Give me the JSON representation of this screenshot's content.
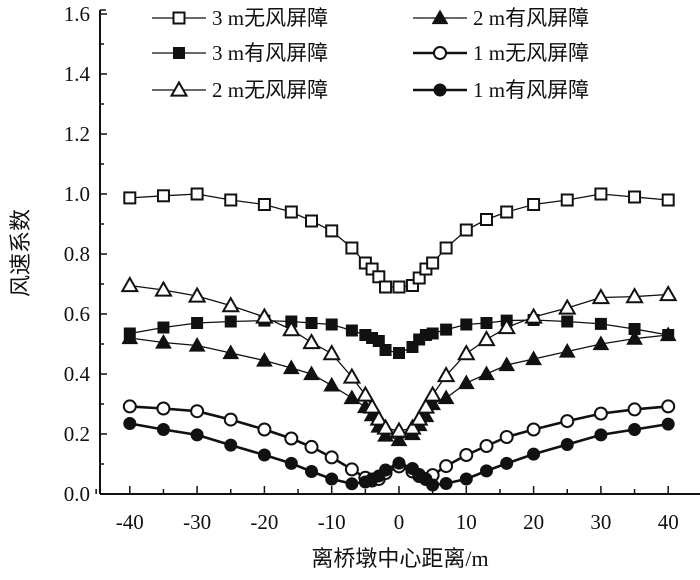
{
  "chart_data": {
    "type": "line",
    "title": "",
    "xlabel": "离桥墩中心距离/m",
    "ylabel": "风速系数",
    "xlim": [
      -46,
      46
    ],
    "ylim": [
      0,
      1.6
    ],
    "xticks": [
      -40,
      -30,
      -20,
      -10,
      0,
      10,
      20,
      30,
      40
    ],
    "xtick_labels": [
      "-40",
      "-30",
      "-20",
      "-10",
      "0",
      "10",
      "20",
      "30",
      "40"
    ],
    "yticks": [
      0,
      0.2,
      0.4,
      0.6,
      0.8,
      1.0,
      1.2,
      1.4,
      1.6
    ],
    "ytick_labels": [
      "0.0",
      "0.2",
      "0.4",
      "0.6",
      "0.8",
      "1.0",
      "1.2",
      "1.4",
      "1.6"
    ],
    "grid": false,
    "legend_position": "top-right",
    "x": [
      -40,
      -35,
      -30,
      -25,
      -20,
      -16,
      -13,
      -10,
      -7,
      -5,
      -4,
      -3,
      -2,
      0,
      2,
      3,
      4,
      5,
      7,
      10,
      13,
      16,
      20,
      25,
      30,
      35,
      40
    ],
    "series": [
      {
        "name": "3 m无风屏障",
        "marker": "open-square",
        "color": "#111111",
        "values": [
          0.987,
          0.994,
          1.0,
          0.98,
          0.965,
          0.94,
          0.91,
          0.877,
          0.82,
          0.77,
          0.75,
          0.724,
          0.69,
          0.69,
          0.695,
          0.72,
          0.75,
          0.77,
          0.82,
          0.88,
          0.915,
          0.94,
          0.965,
          0.98,
          1.0,
          0.99,
          0.98
        ]
      },
      {
        "name": "2 m有风屏障",
        "marker": "filled-triangle",
        "color": "#111111",
        "values": [
          0.52,
          0.505,
          0.495,
          0.47,
          0.445,
          0.42,
          0.4,
          0.362,
          0.32,
          0.29,
          0.263,
          0.225,
          0.195,
          0.18,
          0.2,
          0.23,
          0.26,
          0.3,
          0.32,
          0.37,
          0.4,
          0.43,
          0.45,
          0.475,
          0.5,
          0.518,
          0.53
        ]
      },
      {
        "name": "3 m有风屏障",
        "marker": "filled-square",
        "color": "#111111",
        "values": [
          0.535,
          0.555,
          0.57,
          0.575,
          0.578,
          0.575,
          0.57,
          0.565,
          0.545,
          0.53,
          0.52,
          0.51,
          0.48,
          0.47,
          0.49,
          0.515,
          0.53,
          0.535,
          0.548,
          0.565,
          0.57,
          0.578,
          0.58,
          0.575,
          0.567,
          0.55,
          0.53
        ]
      },
      {
        "name": "1 m无风屏障",
        "marker": "open-circle",
        "color": "#111111",
        "values": [
          0.292,
          0.285,
          0.276,
          0.248,
          0.215,
          0.185,
          0.157,
          0.122,
          0.082,
          0.054,
          0.045,
          0.05,
          0.07,
          0.092,
          0.075,
          0.06,
          0.05,
          0.063,
          0.093,
          0.13,
          0.16,
          0.19,
          0.215,
          0.243,
          0.268,
          0.282,
          0.292
        ]
      },
      {
        "name": "2 m无风屏障",
        "marker": "open-triangle",
        "color": "#111111",
        "values": [
          0.695,
          0.68,
          0.66,
          0.628,
          0.59,
          0.548,
          0.505,
          0.468,
          0.39,
          0.33,
          0.29,
          0.25,
          0.22,
          0.21,
          0.22,
          0.25,
          0.29,
          0.33,
          0.395,
          0.468,
          0.515,
          0.555,
          0.59,
          0.62,
          0.655,
          0.658,
          0.665
        ]
      },
      {
        "name": "1 m有风屏障",
        "marker": "filled-circle",
        "color": "#111111",
        "values": [
          0.235,
          0.215,
          0.197,
          0.163,
          0.13,
          0.102,
          0.075,
          0.05,
          0.034,
          0.04,
          0.05,
          0.06,
          0.08,
          0.103,
          0.085,
          0.065,
          0.05,
          0.03,
          0.035,
          0.05,
          0.077,
          0.102,
          0.133,
          0.165,
          0.197,
          0.215,
          0.233
        ]
      }
    ]
  }
}
